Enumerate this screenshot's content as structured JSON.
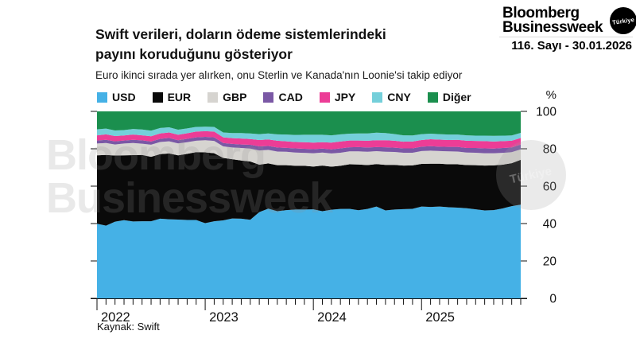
{
  "header": {
    "logo_line1": "Bloomberg",
    "logo_line2": "Businessweek",
    "badge": "Türkiye",
    "issue": "116. Sayı - 30.01.2026"
  },
  "watermark": {
    "line1": "Bloomberg",
    "line2": "Businessweek",
    "badge": "Türkiye"
  },
  "chart_data": {
    "type": "area",
    "stacked": true,
    "title": "Swift verileri, doların ödeme sistemlerindeki\npayını koruduğunu gösteriyor",
    "subtitle": "Euro ikinci sırada yer alırken, onu Sterlin ve Kanada'nın Loonie'si takip ediyor",
    "source": "Kaynak: Swift",
    "unit_label": "%",
    "legend_position": "top",
    "grid": false,
    "ylim": [
      0,
      100
    ],
    "yticks": [
      0,
      20,
      40,
      60,
      80,
      100
    ],
    "x_year_labels": [
      "2022",
      "2023",
      "2024",
      "2025"
    ],
    "months_per_year": 12,
    "x_start": "2022-01",
    "x_end": "2025-12",
    "series": [
      {
        "name": "USD",
        "color": "#45b1e6",
        "values": [
          39.9,
          38.9,
          41.0,
          41.8,
          41.1,
          41.2,
          41.2,
          42.6,
          42.3,
          42.1,
          41.9,
          41.9,
          40.2,
          41.2,
          41.7,
          42.7,
          42.6,
          42.0,
          46.1,
          48.0,
          46.6,
          47.2,
          47.5,
          47.5,
          47.6,
          46.6,
          47.4,
          47.8,
          47.9,
          47.1,
          47.8,
          49.1,
          47.0,
          47.5,
          47.7,
          47.9,
          49.1,
          48.9,
          49.1,
          48.7,
          48.5,
          48.2,
          47.6,
          47.0,
          47.2,
          48.1,
          49.3,
          50.1
        ]
      },
      {
        "name": "EUR",
        "color": "#0a0a0a",
        "values": [
          36.6,
          37.8,
          35.4,
          34.7,
          35.5,
          35.5,
          34.5,
          34.5,
          35.2,
          34.4,
          35.4,
          36.3,
          37.9,
          36.4,
          33.4,
          31.7,
          31.1,
          31.2,
          25.4,
          24.2,
          24.6,
          24.0,
          23.4,
          23.4,
          22.9,
          24.4,
          23.0,
          23.1,
          23.8,
          24.5,
          23.5,
          22.7,
          24.4,
          23.9,
          23.3,
          23.2,
          22.8,
          23.1,
          22.9,
          23.0,
          23.2,
          23.1,
          23.6,
          24.0,
          23.9,
          23.4,
          23.0,
          24.0
        ]
      },
      {
        "name": "GBP",
        "color": "#d6d4d0",
        "values": [
          6.3,
          6.4,
          5.9,
          6.3,
          6.5,
          6.0,
          6.5,
          6.5,
          6.5,
          6.4,
          6.2,
          6.1,
          6.5,
          6.6,
          6.2,
          6.3,
          6.7,
          6.9,
          7.6,
          7.2,
          7.3,
          7.2,
          7.1,
          6.9,
          7.1,
          7.0,
          7.1,
          7.0,
          6.9,
          7.0,
          7.1,
          6.9,
          7.0,
          6.9,
          6.9,
          6.8,
          6.9,
          7.0,
          6.8,
          6.9,
          6.8,
          6.7,
          6.7,
          6.6,
          6.5,
          6.3,
          5.9,
          5.6
        ]
      },
      {
        "name": "CAD",
        "color": "#7a58a5",
        "values": [
          1.6,
          1.7,
          1.7,
          1.6,
          1.7,
          1.8,
          1.7,
          1.7,
          1.8,
          1.7,
          1.8,
          1.8,
          1.8,
          1.9,
          1.8,
          1.9,
          1.9,
          2.0,
          2.2,
          2.1,
          2.2,
          2.1,
          2.2,
          2.2,
          2.2,
          2.1,
          2.2,
          2.3,
          2.2,
          2.3,
          2.3,
          2.2,
          2.4,
          2.3,
          2.3,
          2.3,
          2.3,
          2.4,
          2.3,
          2.4,
          2.5,
          2.4,
          2.5,
          2.6,
          2.5,
          2.6,
          2.5,
          2.6
        ]
      },
      {
        "name": "JPY",
        "color": "#ec3d96",
        "values": [
          2.8,
          2.9,
          2.8,
          2.7,
          2.8,
          2.7,
          2.8,
          2.9,
          2.9,
          2.9,
          3.0,
          3.1,
          3.0,
          3.1,
          3.0,
          3.1,
          3.2,
          3.1,
          3.4,
          3.5,
          3.6,
          3.5,
          3.4,
          3.5,
          3.5,
          3.4,
          3.6,
          3.7,
          3.6,
          3.5,
          3.6,
          3.7,
          3.8,
          3.7,
          3.6,
          3.7,
          3.6,
          3.7,
          3.8,
          3.7,
          3.8,
          3.9,
          3.8,
          3.9,
          3.8,
          3.7,
          3.6,
          3.5
        ]
      },
      {
        "name": "CNY",
        "color": "#74cfda",
        "values": [
          3.2,
          3.1,
          3.0,
          2.9,
          3.0,
          3.1,
          3.0,
          2.9,
          2.8,
          2.7,
          2.6,
          2.5,
          2.4,
          2.5,
          2.6,
          2.7,
          2.9,
          3.0,
          3.1,
          3.2,
          3.4,
          3.6,
          3.8,
          4.0,
          4.2,
          4.0,
          3.9,
          3.8,
          3.7,
          3.8,
          3.9,
          4.0,
          3.8,
          3.6,
          3.4,
          3.2,
          3.1,
          3.0,
          2.9,
          2.9,
          2.8,
          2.9,
          2.8,
          2.9,
          3.0,
          2.9,
          2.8,
          2.7
        ]
      },
      {
        "name": "Diğer",
        "color": "#1b8f4e",
        "values": [
          9.6,
          9.2,
          10.2,
          10.0,
          9.4,
          9.7,
          10.3,
          8.9,
          8.5,
          9.8,
          9.1,
          8.3,
          8.2,
          8.3,
          11.3,
          11.6,
          11.6,
          11.8,
          12.2,
          11.8,
          12.3,
          12.4,
          12.6,
          12.5,
          12.5,
          12.5,
          12.8,
          12.3,
          11.9,
          11.8,
          11.8,
          11.4,
          11.6,
          12.1,
          12.8,
          12.9,
          12.2,
          11.9,
          12.2,
          12.4,
          12.4,
          12.8,
          13.0,
          13.0,
          13.1,
          13.0,
          12.9,
          11.5
        ]
      }
    ]
  }
}
